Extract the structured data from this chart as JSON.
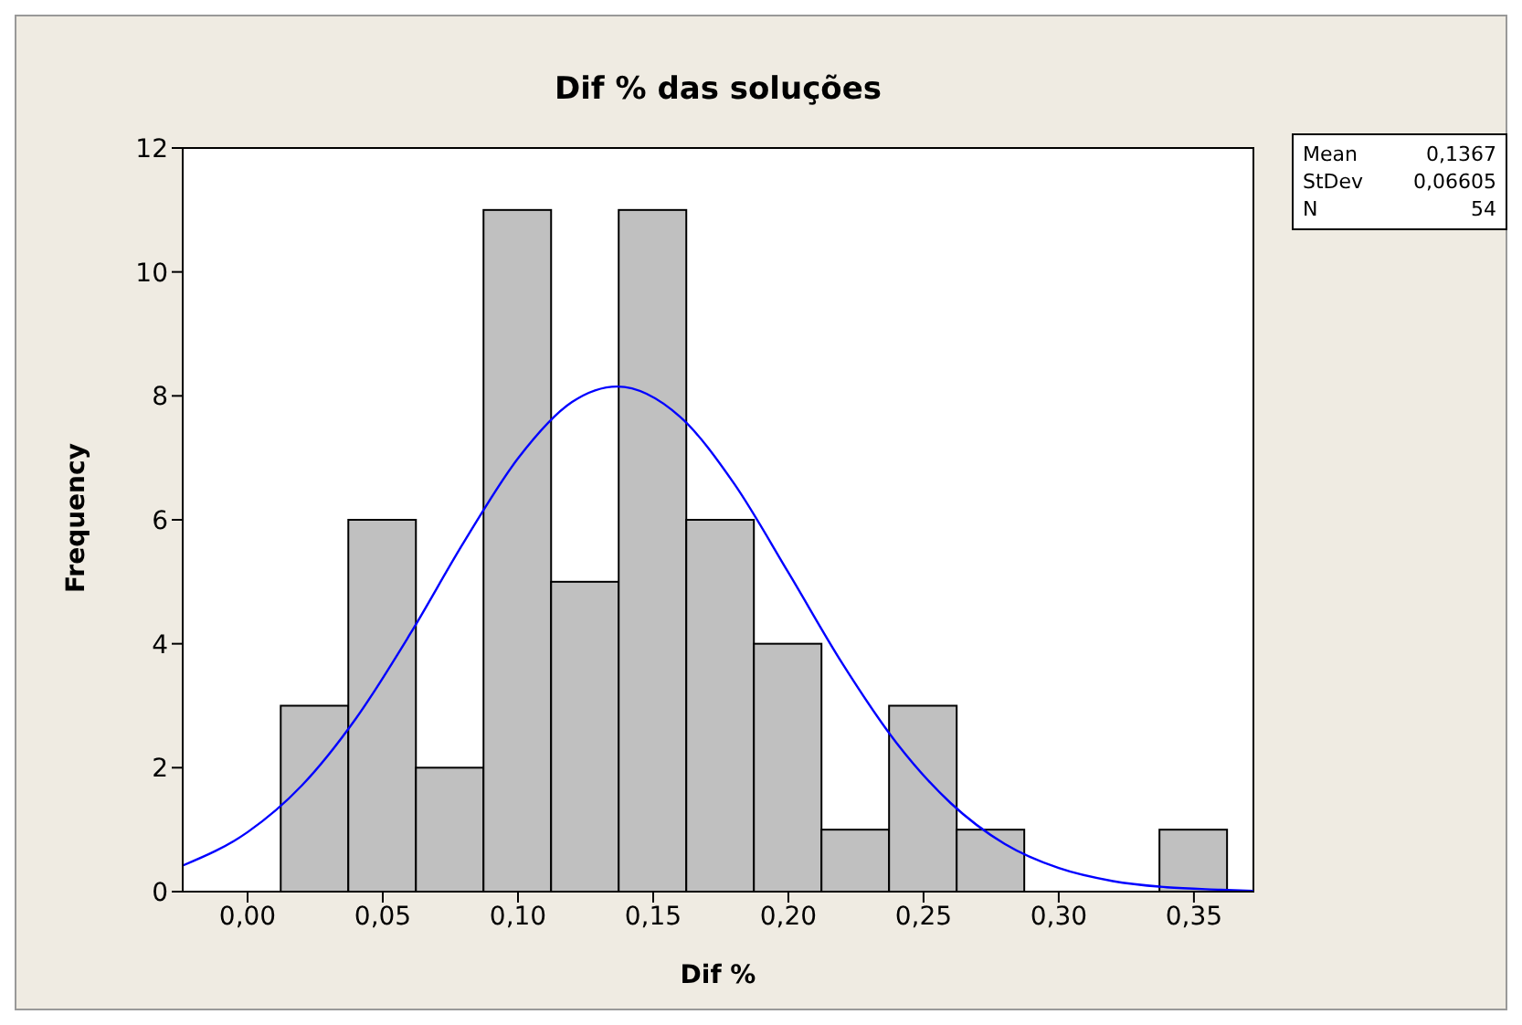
{
  "chart_data": {
    "type": "histogram",
    "title": "Dif % das soluções",
    "xlabel": "Dif %",
    "ylabel": "Frequency",
    "bins": [
      -0.0125,
      0.0125,
      0.0375,
      0.0625,
      0.0875,
      0.1125,
      0.1375,
      0.1625,
      0.1875,
      0.2125,
      0.2375,
      0.2625,
      0.2875,
      0.3125,
      0.3375,
      0.3625
    ],
    "series": [
      {
        "color": "#c0c0c0",
        "values": [
          0,
          3,
          6,
          2,
          11,
          5,
          11,
          6,
          4,
          1,
          3,
          1,
          0,
          0,
          1
        ]
      },
      {
        "type": "line",
        "color": "#0000ff",
        "x": [
          -0.024,
          0,
          0.02,
          0.04,
          0.06,
          0.08,
          0.1,
          0.12,
          0.1367,
          0.16,
          0.18,
          0.2,
          0.22,
          0.24,
          0.26,
          0.28,
          0.3,
          0.32,
          0.34,
          0.36,
          0.372
        ],
        "values": [
          0.42,
          0.96,
          1.71,
          2.79,
          4.15,
          5.64,
          6.99,
          7.9,
          8.15,
          7.66,
          6.58,
          5.15,
          3.68,
          2.4,
          1.43,
          0.77,
          0.38,
          0.17,
          0.07,
          0.03,
          0.01
        ]
      }
    ],
    "xlim": [
      -0.024,
      0.372
    ],
    "xticks": [
      {
        "value": 0,
        "label": "0,00"
      },
      {
        "value": 0.05,
        "label": "0,05"
      },
      {
        "value": 0.1,
        "label": "0,10"
      },
      {
        "value": 0.15,
        "label": "0,15"
      },
      {
        "value": 0.2,
        "label": "0,20"
      },
      {
        "value": 0.25,
        "label": "0,25"
      },
      {
        "value": 0.3,
        "label": "0,30"
      },
      {
        "value": 0.35,
        "label": "0,35"
      }
    ],
    "ylim": [
      0,
      12
    ],
    "yticks": [
      0,
      2,
      4,
      6,
      8,
      10,
      12
    ],
    "annotations": [
      "Mean 0,1367",
      "StDev 0,06605",
      "N 54"
    ]
  }
}
